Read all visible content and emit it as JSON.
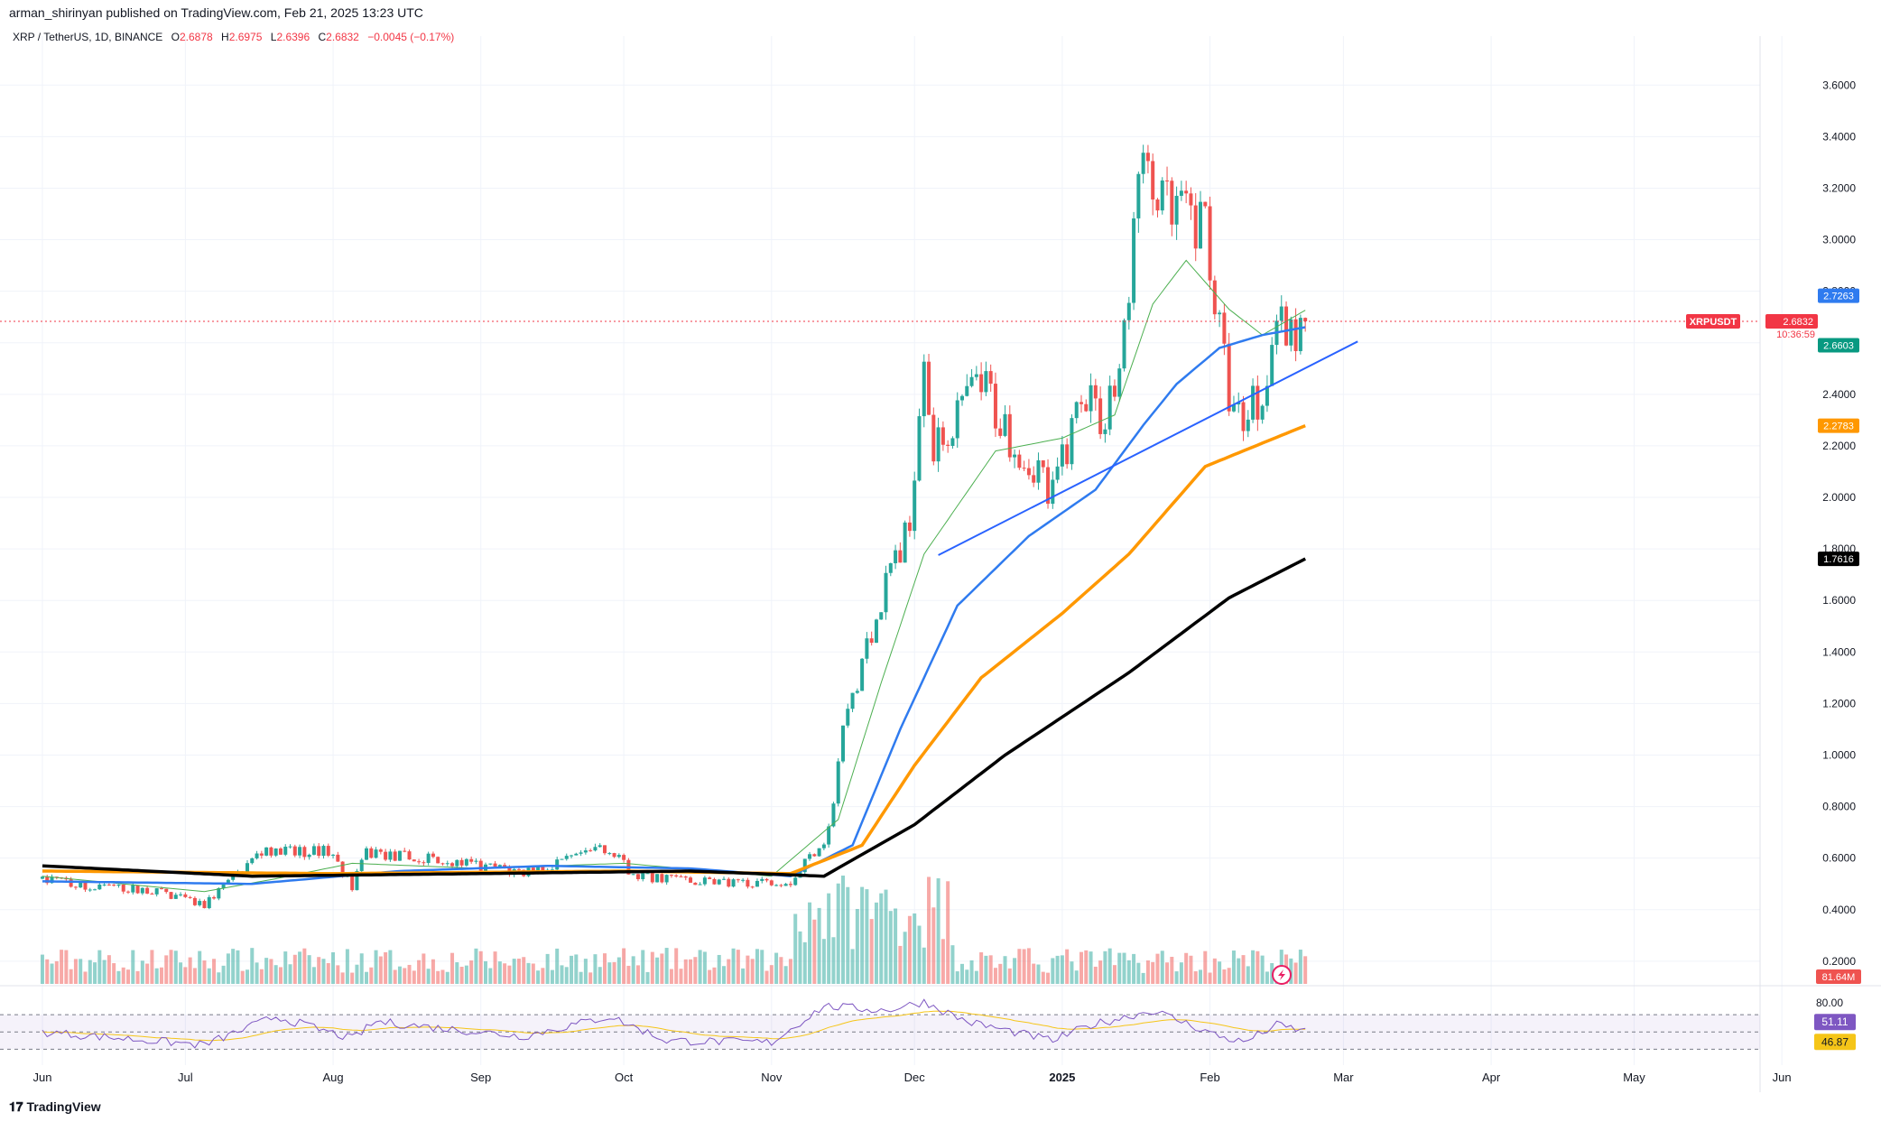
{
  "header": "arman_shirinyan published on TradingView.com, Feb 21, 2025 13:23 UTC",
  "symbol": {
    "name": "XRP / TetherUS, 1D, BINANCE",
    "o_label": "O",
    "o": "2.6878",
    "h_label": "H",
    "h": "2.6975",
    "l_label": "L",
    "l": "2.6396",
    "c_label": "C",
    "c": "2.6832",
    "change": "−0.0045 (−0.17%)"
  },
  "branding": "TradingView",
  "colors": {
    "up": "#26a69a",
    "down": "#ef5350",
    "ema20": "#4caf50",
    "ema50": "#2f7bef",
    "ema100": "#ff9800",
    "ema200": "#000000",
    "trendline": "#2962ff",
    "rsi": "#7e57c2",
    "rsi_ma": "#f5c518"
  },
  "chart_data": {
    "type": "candlestick",
    "title": "",
    "x_tick_labels": [
      "Jun",
      "Jul",
      "Aug",
      "Sep",
      "Oct",
      "Nov",
      "Dec",
      "2025",
      "Feb",
      "Mar",
      "Apr",
      "May",
      "Jun"
    ],
    "x_tick_dates": [
      "2024-06-01",
      "2024-07-01",
      "2024-08-01",
      "2024-09-01",
      "2024-10-01",
      "2024-11-01",
      "2024-12-01",
      "2025-01-01",
      "2025-02-01",
      "2025-03-01",
      "2025-04-01",
      "2025-05-01",
      "2025-06-01"
    ],
    "y_ticks": [
      "3.6000",
      "3.4000",
      "3.2000",
      "3.0000",
      "2.8000",
      "2.6000",
      "2.4000",
      "2.2000",
      "2.0000",
      "1.8000",
      "1.6000",
      "1.4000",
      "1.2000",
      "1.0000",
      "0.8000",
      "0.6000",
      "0.4000",
      "0.2000"
    ],
    "ylim": [
      0.14,
      3.72
    ],
    "closes_anchor": [
      [
        "2024-06-01",
        0.52
      ],
      [
        "2024-06-10",
        0.49
      ],
      [
        "2024-06-24",
        0.475
      ],
      [
        "2024-07-05",
        0.42
      ],
      [
        "2024-07-12",
        0.54
      ],
      [
        "2024-07-17",
        0.62
      ],
      [
        "2024-07-31",
        0.63
      ],
      [
        "2024-08-05",
        0.49
      ],
      [
        "2024-08-08",
        0.62
      ],
      [
        "2024-08-25",
        0.59
      ],
      [
        "2024-09-10",
        0.54
      ],
      [
        "2024-09-28",
        0.64
      ],
      [
        "2024-10-03",
        0.53
      ],
      [
        "2024-10-25",
        0.5
      ],
      [
        "2024-11-05",
        0.51
      ],
      [
        "2024-11-13",
        0.7
      ],
      [
        "2024-11-16",
        1.08
      ],
      [
        "2024-11-23",
        1.55
      ],
      [
        "2024-11-30",
        1.9
      ],
      [
        "2024-12-03",
        2.6
      ],
      [
        "2024-12-05",
        2.2
      ],
      [
        "2024-12-10",
        2.3
      ],
      [
        "2024-12-15",
        2.45
      ],
      [
        "2024-12-20",
        2.25
      ],
      [
        "2024-12-30",
        2.0
      ],
      [
        "2025-01-05",
        2.4
      ],
      [
        "2025-01-10",
        2.3
      ],
      [
        "2025-01-15",
        2.7
      ],
      [
        "2025-01-16",
        3.15
      ],
      [
        "2025-01-18",
        3.25
      ],
      [
        "2025-01-25",
        3.1
      ],
      [
        "2025-01-31",
        3.05
      ],
      [
        "2025-02-03",
        2.65
      ],
      [
        "2025-02-06",
        2.3
      ],
      [
        "2025-02-12",
        2.4
      ],
      [
        "2025-02-15",
        2.75
      ],
      [
        "2025-02-18",
        2.6
      ],
      [
        "2025-02-21",
        2.683
      ]
    ],
    "series": [
      {
        "name": "EMA 20",
        "last": "2.7263",
        "values": [
          [
            "2024-06-01",
            0.53
          ],
          [
            "2024-07-05",
            0.47
          ],
          [
            "2024-07-20",
            0.52
          ],
          [
            "2024-08-05",
            0.58
          ],
          [
            "2024-09-01",
            0.56
          ],
          [
            "2024-10-01",
            0.58
          ],
          [
            "2024-11-01",
            0.53
          ],
          [
            "2024-11-15",
            0.75
          ],
          [
            "2024-11-24",
            1.28
          ],
          [
            "2024-12-03",
            1.78
          ],
          [
            "2024-12-18",
            2.18
          ],
          [
            "2025-01-01",
            2.23
          ],
          [
            "2025-01-12",
            2.32
          ],
          [
            "2025-01-20",
            2.75
          ],
          [
            "2025-01-27",
            2.92
          ],
          [
            "2025-02-05",
            2.73
          ],
          [
            "2025-02-12",
            2.63
          ],
          [
            "2025-02-21",
            2.7263
          ]
        ]
      },
      {
        "name": "EMA 50",
        "last": "2.6603",
        "values": [
          [
            "2024-06-01",
            0.51
          ],
          [
            "2024-07-15",
            0.5
          ],
          [
            "2024-08-15",
            0.55
          ],
          [
            "2024-09-15",
            0.57
          ],
          [
            "2024-10-15",
            0.56
          ],
          [
            "2024-11-05",
            0.53
          ],
          [
            "2024-11-18",
            0.65
          ],
          [
            "2024-11-28",
            1.1
          ],
          [
            "2024-12-10",
            1.58
          ],
          [
            "2024-12-25",
            1.85
          ],
          [
            "2025-01-08",
            2.03
          ],
          [
            "2025-01-18",
            2.28
          ],
          [
            "2025-01-25",
            2.44
          ],
          [
            "2025-02-03",
            2.58
          ],
          [
            "2025-02-12",
            2.63
          ],
          [
            "2025-02-21",
            2.6603
          ]
        ]
      },
      {
        "name": "EMA 100",
        "last": "2.2783",
        "values": [
          [
            "2024-06-01",
            0.55
          ],
          [
            "2024-08-01",
            0.54
          ],
          [
            "2024-10-01",
            0.55
          ],
          [
            "2024-11-05",
            0.54
          ],
          [
            "2024-11-20",
            0.65
          ],
          [
            "2024-12-01",
            0.96
          ],
          [
            "2024-12-15",
            1.3
          ],
          [
            "2025-01-01",
            1.55
          ],
          [
            "2025-01-15",
            1.78
          ],
          [
            "2025-01-31",
            2.12
          ],
          [
            "2025-02-21",
            2.2783
          ]
        ]
      },
      {
        "name": "EMA 200",
        "last": "1.7616",
        "values": [
          [
            "2024-06-01",
            0.57
          ],
          [
            "2024-07-15",
            0.53
          ],
          [
            "2024-09-01",
            0.54
          ],
          [
            "2024-10-15",
            0.55
          ],
          [
            "2024-11-12",
            0.53
          ],
          [
            "2024-12-01",
            0.73
          ],
          [
            "2024-12-20",
            1.0
          ],
          [
            "2025-01-15",
            1.32
          ],
          [
            "2025-02-05",
            1.61
          ],
          [
            "2025-02-21",
            1.7616
          ]
        ]
      },
      {
        "name": "trendline",
        "values": [
          [
            "2024-12-06",
            1.776
          ],
          [
            "2025-03-04",
            2.605
          ]
        ]
      }
    ],
    "price_labels": [
      {
        "text": "2.7263",
        "value": 2.7263,
        "color": "#2f7bef"
      },
      {
        "text": "2.6832",
        "value": 2.6832,
        "color": "#f23645",
        "symbol": "XRPUSDT",
        "countdown": "10:36:59"
      },
      {
        "text": "2.6603",
        "value": 2.6603,
        "color": "#089981"
      },
      {
        "text": "2.2783",
        "value": 2.2783,
        "color": "#ff9800"
      },
      {
        "text": "1.7616",
        "value": 1.7616,
        "color": "#000000"
      }
    ],
    "last_price": 2.6832,
    "volume_label": "81.64M",
    "rsi": {
      "tick": "80.00",
      "value": "51.11",
      "ma": "46.87",
      "upper": 70,
      "lower": 30,
      "anchor": [
        [
          "2024-06-01",
          50
        ],
        [
          "2024-07-05",
          35
        ],
        [
          "2024-07-20",
          68
        ],
        [
          "2024-08-05",
          42
        ],
        [
          "2024-08-10",
          62
        ],
        [
          "2024-09-10",
          45
        ],
        [
          "2024-09-28",
          68
        ],
        [
          "2024-10-10",
          40
        ],
        [
          "2024-11-01",
          38
        ],
        [
          "2024-11-12",
          80
        ],
        [
          "2024-11-25",
          75
        ],
        [
          "2024-12-03",
          85
        ],
        [
          "2024-12-12",
          62
        ],
        [
          "2024-12-30",
          40
        ],
        [
          "2025-01-07",
          58
        ],
        [
          "2025-01-20",
          75
        ],
        [
          "2025-02-03",
          45
        ],
        [
          "2025-02-08",
          38
        ],
        [
          "2025-02-15",
          58
        ],
        [
          "2025-02-21",
          51
        ]
      ]
    }
  }
}
